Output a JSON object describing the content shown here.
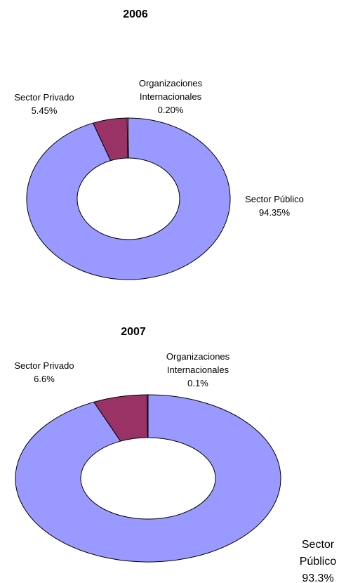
{
  "chart_data": [
    {
      "type": "donut",
      "title": "2006",
      "categories": [
        "Sector Público",
        "Sector Privado",
        "Organizaciones Internacionales"
      ],
      "values": [
        94.35,
        5.45,
        0.2
      ],
      "value_labels": [
        "94.35%",
        "5.45%",
        "0.20%"
      ],
      "colors": [
        "#9999ff",
        "#993366",
        "#ffffcc"
      ]
    },
    {
      "type": "donut",
      "title": "2007",
      "categories": [
        "Sector Público",
        "Sector Privado",
        "Organizaciones Internacionales"
      ],
      "values": [
        93.3,
        6.6,
        0.1
      ],
      "value_labels": [
        "93.3%",
        "6.6%",
        "0.1%"
      ],
      "colors": [
        "#9999ff",
        "#993366",
        "#ffffcc"
      ]
    }
  ]
}
